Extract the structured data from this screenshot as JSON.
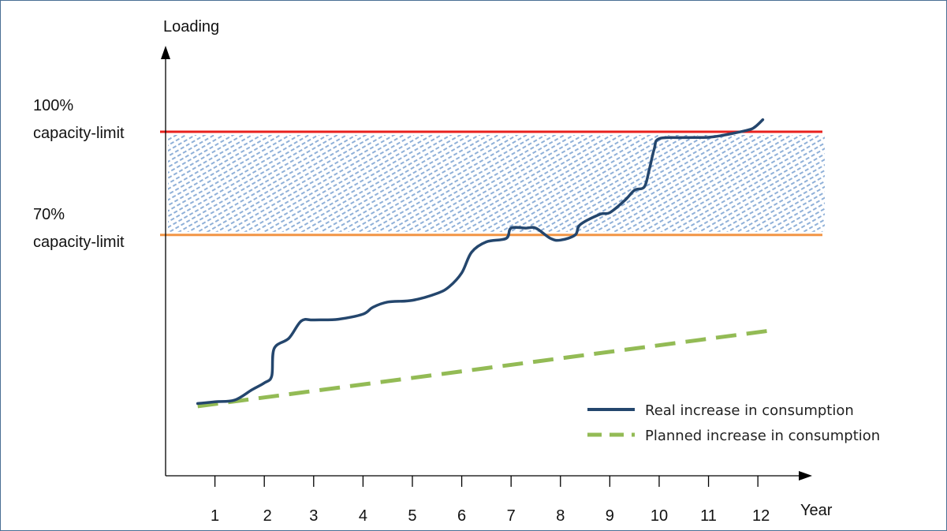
{
  "chart_data": {
    "type": "line",
    "ylabel": "Loading",
    "xlabel": "Year",
    "x_ticks": [
      "1",
      "2",
      "3",
      "4",
      "5",
      "6",
      "7",
      "8",
      "9",
      "10",
      "11",
      "12"
    ],
    "xlim": [
      0,
      13.1
    ],
    "ylim": [
      0,
      125
    ],
    "grid": false,
    "legend_position": "bottom-right",
    "reference_lines": [
      {
        "label": [
          "100%",
          "capacity-limit"
        ],
        "value": 100,
        "color": "#e8211e"
      },
      {
        "label": [
          "70%",
          "capacity-limit"
        ],
        "value": 70,
        "color": "#f29545"
      }
    ],
    "band": {
      "from": 70,
      "to": 100,
      "color": "#8fb0d8",
      "pattern": "hatched"
    },
    "series": [
      {
        "name": "Real increase in consumption",
        "color": "#24466d",
        "style": "solid",
        "x": [
          0.65,
          1.0,
          1.4,
          1.75,
          2.0,
          2.15,
          2.2,
          2.5,
          2.75,
          3.0,
          3.5,
          4.0,
          4.2,
          4.5,
          5.0,
          5.5,
          5.75,
          6.0,
          6.2,
          6.5,
          6.9,
          7.0,
          7.3,
          7.5,
          7.8,
          8.0,
          8.3,
          8.4,
          8.8,
          9.0,
          9.3,
          9.5,
          9.7,
          9.8,
          9.9,
          10.0,
          10.5,
          11.0,
          11.3,
          11.8,
          11.95,
          12.1
        ],
        "y": [
          21,
          21.5,
          22,
          25,
          27,
          29,
          37,
          40,
          45,
          45.3,
          45.5,
          47,
          49,
          50.5,
          51,
          53,
          55,
          59,
          65,
          68,
          69,
          72,
          72,
          72,
          69,
          68.5,
          70,
          73,
          76,
          76.5,
          80,
          83,
          84,
          89,
          95,
          98,
          98.3,
          98.4,
          99,
          100.5,
          101.5,
          103.5
        ]
      },
      {
        "name": "Planned increase in consumption",
        "color": "#93bb55",
        "style": "dashed",
        "x": [
          0.65,
          12.3
        ],
        "y": [
          20.2,
          42.3
        ]
      }
    ]
  }
}
